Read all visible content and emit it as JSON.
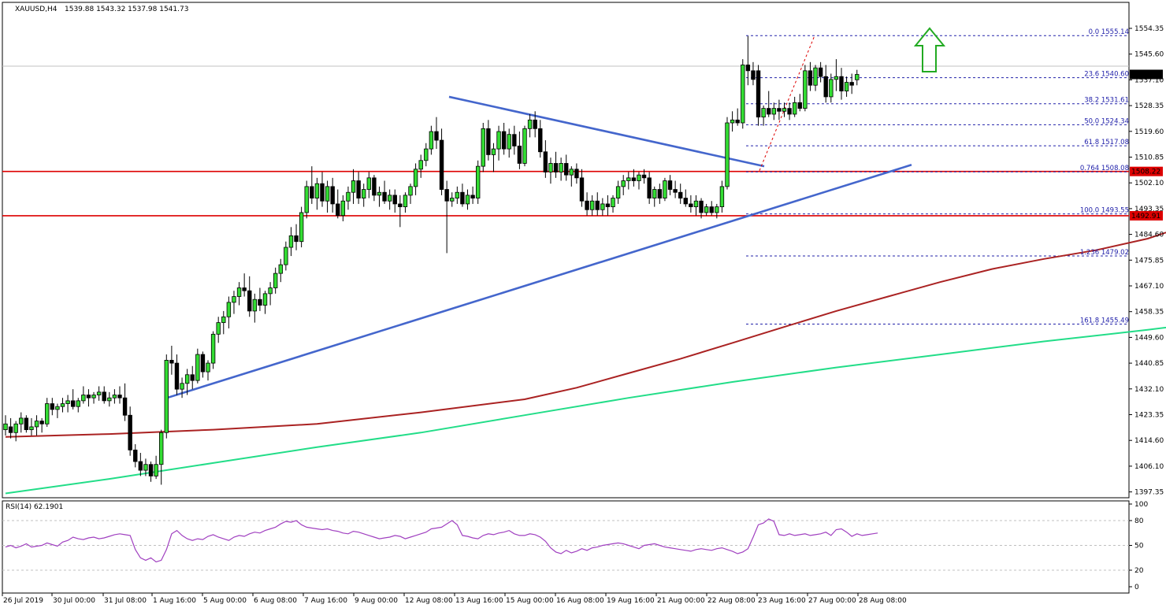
{
  "header": {
    "symbol": "XAUUSD,H4",
    "ohlc": "1539.88 1543.32 1537.98 1541.73"
  },
  "price_axis": {
    "labels": [
      "1554.35",
      "1545.60",
      "1537.10",
      "1528.35",
      "1519.60",
      "1510.85",
      "1502.10",
      "1493.35",
      "1484.60",
      "1475.85",
      "1467.10",
      "1458.35",
      "1449.60",
      "1440.85",
      "1432.10",
      "1423.35",
      "1414.60",
      "1406.10",
      "1397.35"
    ],
    "current_price": "1541.73",
    "support_label": "1492.91",
    "resistance_label": "1508.22"
  },
  "time_axis": {
    "labels": [
      "26 Jul 2019",
      "30 Jul 00:00",
      "31 Jul 08:00",
      "1 Aug 16:00",
      "5 Aug 00:00",
      "6 Aug 08:00",
      "7 Aug 16:00",
      "9 Aug 00:00",
      "12 Aug 08:00",
      "13 Aug 16:00",
      "15 Aug 00:00",
      "16 Aug 08:00",
      "19 Aug 16:00",
      "21 Aug 00:00",
      "22 Aug 08:00",
      "23 Aug 16:00",
      "27 Aug 00:00",
      "28 Aug 08:00"
    ]
  },
  "fibonacci": [
    {
      "label": "0.0 1555.14",
      "price": 1555.14
    },
    {
      "label": "23.6 1540.60",
      "price": 1540.6
    },
    {
      "label": "38.2 1531.61",
      "price": 1531.61
    },
    {
      "label": "50.0 1524.34",
      "price": 1524.34
    },
    {
      "label": "61.8 1517.08",
      "price": 1517.08
    },
    {
      "label": "0.764 1508.08",
      "price": 1508.08
    },
    {
      "label": "100.0 1493.55",
      "price": 1493.55
    },
    {
      "label": "1.236 1479.02",
      "price": 1479.02
    },
    {
      "label": "161.8 1455.49",
      "price": 1455.49
    }
  ],
  "rsi": {
    "title": "RSI(14) 62.1901",
    "levels": [
      "100",
      "80",
      "50",
      "20",
      "0"
    ],
    "values": [
      48,
      50,
      47,
      49,
      52,
      48,
      49,
      50,
      53,
      51,
      49,
      54,
      56,
      60,
      58,
      57,
      59,
      60,
      58,
      59,
      61,
      63,
      64,
      63,
      62,
      45,
      35,
      32,
      35,
      30,
      32,
      45,
      64,
      68,
      62,
      58,
      56,
      58,
      57,
      61,
      63,
      60,
      58,
      56,
      60,
      62,
      61,
      64,
      66,
      65,
      68,
      70,
      72,
      76,
      79,
      78,
      80,
      75,
      72,
      71,
      70,
      69,
      70,
      68,
      67,
      65,
      64,
      67,
      66,
      64,
      62,
      60,
      58,
      59,
      60,
      62,
      61,
      58,
      60,
      62,
      64,
      66,
      70,
      71,
      72,
      76,
      80,
      75,
      62,
      61,
      59,
      58,
      62,
      64,
      63,
      65,
      66,
      68,
      64,
      62,
      62,
      64,
      63,
      60,
      55,
      47,
      42,
      40,
      44,
      41,
      43,
      46,
      44,
      47,
      48,
      50,
      51,
      52,
      53,
      52,
      50,
      48,
      46,
      50,
      51,
      52,
      50,
      48,
      47,
      46,
      45,
      44,
      43,
      45,
      46,
      45,
      44,
      46,
      47,
      45,
      43,
      40,
      42,
      46,
      60,
      75,
      77,
      82,
      79,
      63,
      62,
      64,
      62,
      63,
      64,
      62,
      63,
      64,
      66,
      62,
      69,
      70,
      66,
      61,
      64,
      62,
      63,
      64,
      65
    ],
    "color": "#a040c0"
  },
  "chart_data": {
    "type": "candlestick",
    "title": "XAUUSD,H4",
    "ylim": [
      1395.5,
      1562.0
    ],
    "x_labels": [
      "26 Jul 2019",
      "30 Jul 00:00",
      "31 Jul 08:00",
      "1 Aug 16:00",
      "5 Aug 00:00",
      "6 Aug 08:00",
      "7 Aug 16:00",
      "9 Aug 00:00",
      "12 Aug 08:00",
      "13 Aug 16:00",
      "15 Aug 00:00",
      "16 Aug 08:00",
      "19 Aug 16:00",
      "21 Aug 00:00",
      "22 Aug 08:00",
      "23 Aug 16:00",
      "27 Aug 00:00",
      "28 Aug 08:00"
    ],
    "candles": [
      [
        1419.0,
        1424.0,
        1417.0,
        1421.0
      ],
      [
        1420.0,
        1423.0,
        1416.0,
        1418.0
      ],
      [
        1418.0,
        1422.0,
        1415.0,
        1421.0
      ],
      [
        1421.0,
        1425.0,
        1418.0,
        1423.0
      ],
      [
        1423.0,
        1424.0,
        1418.0,
        1419.0
      ],
      [
        1419.0,
        1423.0,
        1417.0,
        1420.0
      ],
      [
        1420.0,
        1424.0,
        1417.0,
        1422.0
      ],
      [
        1422.0,
        1423.0,
        1418.0,
        1421.0
      ],
      [
        1421.0,
        1430.0,
        1420.0,
        1428.0
      ],
      [
        1428.0,
        1430.0,
        1424.0,
        1426.0
      ],
      [
        1426.0,
        1428.0,
        1423.0,
        1427.0
      ],
      [
        1427.0,
        1430.0,
        1425.0,
        1428.0
      ],
      [
        1428.0,
        1431.0,
        1425.0,
        1429.0
      ],
      [
        1429.0,
        1433.0,
        1426.0,
        1427.0
      ],
      [
        1427.0,
        1430.0,
        1425.0,
        1429.0
      ],
      [
        1429.0,
        1434.0,
        1428.0,
        1431.0
      ],
      [
        1431.0,
        1433.0,
        1427.0,
        1430.0
      ],
      [
        1430.0,
        1432.0,
        1428.0,
        1431.0
      ],
      [
        1431.0,
        1434.0,
        1429.0,
        1432.0
      ],
      [
        1432.0,
        1434.0,
        1428.0,
        1429.0
      ],
      [
        1429.0,
        1432.0,
        1427.0,
        1430.0
      ],
      [
        1430.0,
        1433.0,
        1428.0,
        1431.0
      ],
      [
        1431.0,
        1434.0,
        1428.0,
        1430.0
      ],
      [
        1430.0,
        1435.0,
        1422.0,
        1424.0
      ],
      [
        1424.0,
        1427.0,
        1410.0,
        1412.0
      ],
      [
        1412.0,
        1414.0,
        1406.0,
        1408.0
      ],
      [
        1408.0,
        1411.0,
        1403.0,
        1405.0
      ],
      [
        1405.0,
        1409.0,
        1403.0,
        1407.0
      ],
      [
        1407.0,
        1408.0,
        1401.0,
        1403.0
      ],
      [
        1403.0,
        1410.0,
        1402.0,
        1407.0
      ],
      [
        1407.0,
        1419.0,
        1400.0,
        1418.0
      ],
      [
        1418.0,
        1445.0,
        1416.0,
        1443.0
      ],
      [
        1443.0,
        1448.0,
        1438.0,
        1442.0
      ],
      [
        1442.0,
        1445.0,
        1431.0,
        1433.0
      ],
      [
        1433.0,
        1437.0,
        1430.0,
        1435.0
      ],
      [
        1435.0,
        1440.0,
        1431.0,
        1438.0
      ],
      [
        1438.0,
        1441.0,
        1433.0,
        1436.0
      ],
      [
        1436.0,
        1447.0,
        1435.0,
        1445.0
      ],
      [
        1445.0,
        1446.0,
        1437.0,
        1439.0
      ],
      [
        1439.0,
        1443.0,
        1436.0,
        1442.0
      ],
      [
        1442.0,
        1453.0,
        1440.0,
        1452.0
      ],
      [
        1452.0,
        1458.0,
        1449.0,
        1456.0
      ],
      [
        1456.0,
        1460.0,
        1452.0,
        1458.0
      ],
      [
        1458.0,
        1465.0,
        1454.0,
        1463.0
      ],
      [
        1463.0,
        1467.0,
        1459.0,
        1465.0
      ],
      [
        1465.0,
        1470.0,
        1462.0,
        1468.0
      ],
      [
        1468.0,
        1473.0,
        1465.0,
        1467.0
      ],
      [
        1467.0,
        1472.0,
        1458.0,
        1460.0
      ],
      [
        1460.0,
        1466.0,
        1456.0,
        1464.0
      ],
      [
        1464.0,
        1468.0,
        1460.0,
        1462.0
      ],
      [
        1462.0,
        1467.0,
        1459.0,
        1466.0
      ],
      [
        1466.0,
        1470.0,
        1462.0,
        1468.0
      ],
      [
        1468.0,
        1475.0,
        1466.0,
        1473.0
      ],
      [
        1473.0,
        1478.0,
        1470.0,
        1476.0
      ],
      [
        1476.0,
        1484.0,
        1474.0,
        1482.0
      ],
      [
        1482.0,
        1489.0,
        1479.0,
        1486.0
      ],
      [
        1486.0,
        1490.0,
        1481.0,
        1484.0
      ],
      [
        1484.0,
        1496.0,
        1482.0,
        1494.0
      ],
      [
        1494.0,
        1505.0,
        1492.0,
        1503.0
      ],
      [
        1503.0,
        1510.0,
        1497.0,
        1499.0
      ],
      [
        1499.0,
        1506.0,
        1495.0,
        1504.0
      ],
      [
        1504.0,
        1508.0,
        1496.0,
        1498.0
      ],
      [
        1498.0,
        1505.0,
        1494.0,
        1503.0
      ],
      [
        1503.0,
        1506.0,
        1494.0,
        1497.0
      ],
      [
        1497.0,
        1502.0,
        1492.0,
        1493.0
      ],
      [
        1493.0,
        1500.0,
        1491.0,
        1498.0
      ],
      [
        1498.0,
        1503.0,
        1495.0,
        1501.0
      ],
      [
        1501.0,
        1509.0,
        1497.0,
        1505.0
      ],
      [
        1505.0,
        1508.0,
        1497.0,
        1499.0
      ],
      [
        1499.0,
        1504.0,
        1496.0,
        1502.0
      ],
      [
        1502.0,
        1508.0,
        1499.0,
        1506.0
      ],
      [
        1506.0,
        1507.0,
        1498.0,
        1500.0
      ],
      [
        1500.0,
        1503.0,
        1496.0,
        1501.0
      ],
      [
        1501.0,
        1505.0,
        1497.0,
        1498.0
      ],
      [
        1498.0,
        1502.0,
        1495.0,
        1500.0
      ],
      [
        1500.0,
        1502.0,
        1494.0,
        1497.0
      ],
      [
        1497.0,
        1500.0,
        1489.0,
        1496.0
      ],
      [
        1496.0,
        1501.0,
        1494.0,
        1500.0
      ],
      [
        1500.0,
        1504.0,
        1497.0,
        1503.0
      ],
      [
        1503.0,
        1511.0,
        1500.0,
        1509.0
      ],
      [
        1509.0,
        1514.0,
        1506.0,
        1512.0
      ],
      [
        1512.0,
        1518.0,
        1510.0,
        1516.0
      ],
      [
        1516.0,
        1524.0,
        1514.0,
        1522.0
      ],
      [
        1522.0,
        1527.0,
        1516.0,
        1519.0
      ],
      [
        1519.0,
        1523.0,
        1500.0,
        1502.0
      ],
      [
        1502.0,
        1505.0,
        1480.0,
        1498.0
      ],
      [
        1498.0,
        1501.0,
        1496.0,
        1499.0
      ],
      [
        1499.0,
        1503.0,
        1497.0,
        1501.0
      ],
      [
        1501.0,
        1504.0,
        1496.0,
        1497.0
      ],
      [
        1497.0,
        1502.0,
        1495.0,
        1500.0
      ],
      [
        1500.0,
        1503.0,
        1497.0,
        1499.0
      ],
      [
        1499.0,
        1512.0,
        1497.0,
        1510.0
      ],
      [
        1510.0,
        1525.0,
        1508.0,
        1523.0
      ],
      [
        1523.0,
        1526.0,
        1512.0,
        1514.0
      ],
      [
        1514.0,
        1518.0,
        1508.0,
        1516.0
      ],
      [
        1516.0,
        1524.0,
        1512.0,
        1522.0
      ],
      [
        1522.0,
        1525.0,
        1514.0,
        1516.0
      ],
      [
        1516.0,
        1523.0,
        1513.0,
        1521.0
      ],
      [
        1521.0,
        1524.0,
        1514.0,
        1517.0
      ],
      [
        1517.0,
        1522.0,
        1509.0,
        1511.0
      ],
      [
        1511.0,
        1524.0,
        1510.0,
        1523.0
      ],
      [
        1523.0,
        1528.0,
        1520.0,
        1526.0
      ],
      [
        1526.0,
        1529.0,
        1520.0,
        1523.0
      ],
      [
        1523.0,
        1526.0,
        1513.0,
        1515.0
      ],
      [
        1515.0,
        1519.0,
        1506.0,
        1508.0
      ],
      [
        1508.0,
        1513.0,
        1504.0,
        1511.0
      ],
      [
        1511.0,
        1515.0,
        1506.0,
        1508.0
      ],
      [
        1508.0,
        1513.0,
        1505.0,
        1511.0
      ],
      [
        1511.0,
        1514.0,
        1505.0,
        1507.0
      ],
      [
        1507.0,
        1510.0,
        1503.0,
        1509.0
      ],
      [
        1509.0,
        1511.0,
        1504.0,
        1506.0
      ],
      [
        1506.0,
        1509.0,
        1496.0,
        1498.0
      ],
      [
        1498.0,
        1501.0,
        1493.0,
        1495.0
      ],
      [
        1495.0,
        1500.0,
        1493.0,
        1498.0
      ],
      [
        1498.0,
        1501.0,
        1493.0,
        1495.0
      ],
      [
        1495.0,
        1499.0,
        1493.0,
        1497.0
      ],
      [
        1497.0,
        1500.0,
        1493.0,
        1496.0
      ],
      [
        1496.0,
        1500.0,
        1494.0,
        1499.0
      ],
      [
        1499.0,
        1505.0,
        1497.0,
        1503.0
      ],
      [
        1503.0,
        1507.0,
        1500.0,
        1505.0
      ],
      [
        1505.0,
        1508.0,
        1502.0,
        1506.0
      ],
      [
        1506.0,
        1509.0,
        1503.0,
        1505.0
      ],
      [
        1505.0,
        1508.0,
        1502.0,
        1507.0
      ],
      [
        1507.0,
        1509.0,
        1504.0,
        1506.0
      ],
      [
        1506.0,
        1508.0,
        1497.0,
        1499.0
      ],
      [
        1499.0,
        1503.0,
        1496.0,
        1502.0
      ],
      [
        1502.0,
        1504.0,
        1497.0,
        1499.0
      ],
      [
        1499.0,
        1506.0,
        1498.0,
        1505.0
      ],
      [
        1505.0,
        1507.0,
        1500.0,
        1502.0
      ],
      [
        1502.0,
        1505.0,
        1499.0,
        1501.0
      ],
      [
        1501.0,
        1504.0,
        1497.0,
        1499.0
      ],
      [
        1499.0,
        1502.0,
        1496.0,
        1497.0
      ],
      [
        1497.0,
        1500.0,
        1494.0,
        1496.0
      ],
      [
        1496.0,
        1500.0,
        1493.0,
        1498.0
      ],
      [
        1498.0,
        1499.0,
        1492.0,
        1494.0
      ],
      [
        1494.0,
        1497.0,
        1493.0,
        1496.0
      ],
      [
        1496.0,
        1498.0,
        1493.0,
        1494.0
      ],
      [
        1494.0,
        1497.0,
        1492.0,
        1496.0
      ],
      [
        1496.0,
        1505.0,
        1494.0,
        1503.0
      ],
      [
        1503.0,
        1527.0,
        1502.0,
        1525.0
      ],
      [
        1525.0,
        1529.0,
        1522.0,
        1526.0
      ],
      [
        1526.0,
        1530.0,
        1524.0,
        1525.0
      ],
      [
        1525.0,
        1547.0,
        1523.0,
        1545.0
      ],
      [
        1545.0,
        1555.0,
        1538.0,
        1543.0
      ],
      [
        1543.0,
        1546.0,
        1538.0,
        1540.0
      ],
      [
        1543.0,
        1545.0,
        1524.0,
        1527.0
      ],
      [
        1527.0,
        1531.0,
        1524.0,
        1530.0
      ],
      [
        1530.0,
        1536.0,
        1527.0,
        1528.0
      ],
      [
        1528.0,
        1532.0,
        1526.0,
        1530.0
      ],
      [
        1530.0,
        1533.0,
        1526.0,
        1529.0
      ],
      [
        1529.0,
        1532.0,
        1527.0,
        1530.0
      ],
      [
        1530.0,
        1532.0,
        1526.0,
        1528.0
      ],
      [
        1528.0,
        1534.0,
        1527.0,
        1532.0
      ],
      [
        1532.0,
        1535.0,
        1529.0,
        1530.0
      ],
      [
        1530.0,
        1545.0,
        1529.0,
        1543.0
      ],
      [
        1543.0,
        1546.0,
        1536.0,
        1538.0
      ],
      [
        1538.0,
        1545.0,
        1536.0,
        1544.0
      ],
      [
        1544.0,
        1546.0,
        1539.0,
        1541.0
      ],
      [
        1541.0,
        1545.0,
        1532.0,
        1534.0
      ],
      [
        1534.0,
        1542.0,
        1532.0,
        1540.0
      ],
      [
        1540.0,
        1547.0,
        1536.0,
        1541.0
      ],
      [
        1541.0,
        1544.0,
        1533.0,
        1536.0
      ],
      [
        1536.0,
        1541.0,
        1534.0,
        1539.0
      ],
      [
        1539.0,
        1542.0,
        1535.0,
        1538.0
      ],
      [
        1539.88,
        1543.32,
        1537.98,
        1541.73
      ]
    ],
    "ema_red": {
      "color": "#aa2222",
      "points": [
        [
          0,
          1416.5
        ],
        [
          20,
          1417.5
        ],
        [
          40,
          1419.0
        ],
        [
          60,
          1421.0
        ],
        [
          80,
          1425.0
        ],
        [
          100,
          1429.5
        ],
        [
          110,
          1433.5
        ],
        [
          120,
          1438.5
        ],
        [
          130,
          1443.5
        ],
        [
          140,
          1449.0
        ],
        [
          150,
          1454.5
        ],
        [
          160,
          1460.0
        ],
        [
          170,
          1465.0
        ],
        [
          180,
          1470.0
        ],
        [
          190,
          1474.5
        ],
        [
          200,
          1478.0
        ],
        [
          210,
          1481.0
        ],
        [
          220,
          1485.0
        ],
        [
          230,
          1491.0
        ],
        [
          240,
          1497.0
        ],
        [
          250,
          1500.5
        ],
        [
          260,
          1504.0
        ],
        [
          270,
          1508.0
        ]
      ]
    },
    "ema_green": {
      "color": "#22dd88",
      "points": [
        [
          0,
          1397.0
        ],
        [
          20,
          1402.0
        ],
        [
          40,
          1407.5
        ],
        [
          60,
          1413.0
        ],
        [
          80,
          1418.0
        ],
        [
          100,
          1424.0
        ],
        [
          120,
          1430.0
        ],
        [
          140,
          1435.5
        ],
        [
          160,
          1440.5
        ],
        [
          180,
          1445.0
        ],
        [
          200,
          1449.5
        ],
        [
          220,
          1453.5
        ],
        [
          240,
          1458.0
        ],
        [
          260,
          1464.0
        ],
        [
          270,
          1468.0
        ]
      ]
    },
    "support_price": 1492.91,
    "resistance_price": 1508.22,
    "triangle_upper": [
      [
        1434.0,
        1520.0
      ],
      [
        1536.0,
        1510.0
      ]
    ],
    "triangle_lower": [
      [
        1432.0,
        1430.0
      ],
      [
        1520.0,
        1510.5
      ]
    ],
    "fib_extension_dashed": [
      [
        1508.5,
        1553.0
      ]
    ],
    "arrow": "up"
  }
}
